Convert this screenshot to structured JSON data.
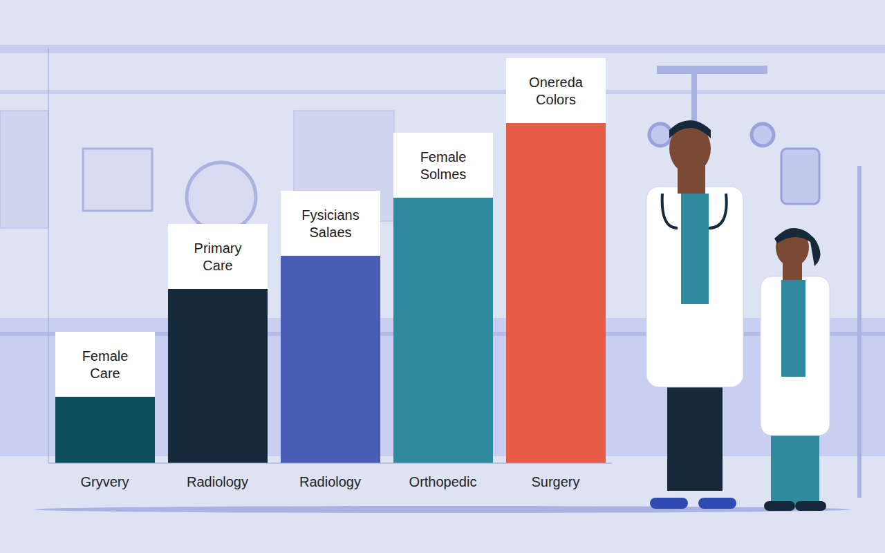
{
  "chart_data": {
    "type": "bar",
    "categories": [
      "Gryvery",
      "Radiology",
      "Radiology",
      "Orthopedic",
      "Surgery"
    ],
    "values": [
      16,
      42,
      50,
      64,
      82
    ],
    "colors": [
      "#0d4f5c",
      "#15293a",
      "#4a5db5",
      "#2e8b9e",
      "#e65c47"
    ],
    "annotations": [
      "Female Care",
      "Primary Care",
      "Fysicians Salaes",
      "Female Solmes",
      "Onereda Colors"
    ],
    "ylim": [
      0,
      100
    ],
    "yticks": [
      0,
      100
    ],
    "tick_labels": "x",
    "grid": false
  }
}
